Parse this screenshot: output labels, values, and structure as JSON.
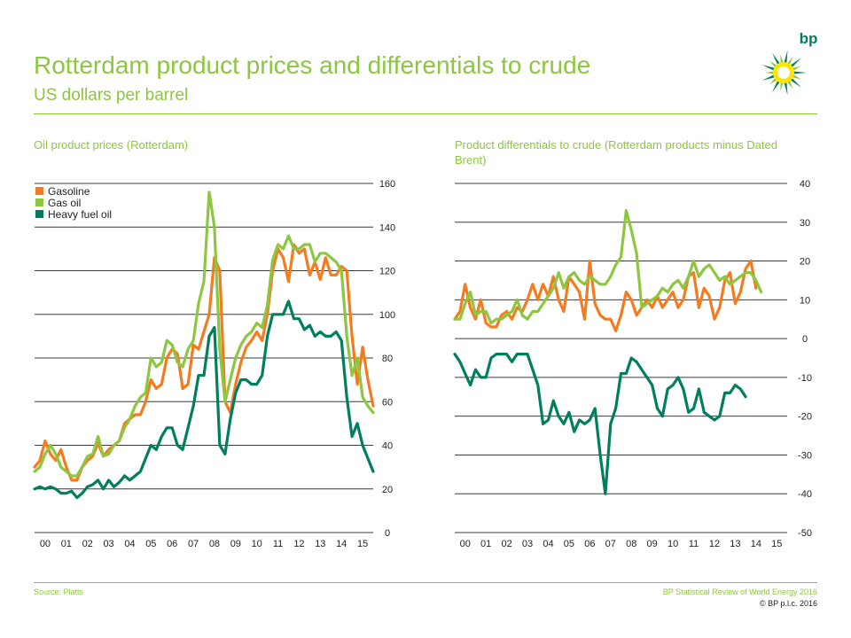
{
  "header": {
    "title": "Rotterdam product prices and differentials to crude",
    "subtitle": "US dollars per barrel",
    "logo_text": "bp"
  },
  "footer": {
    "source": "Source: Platts",
    "publication": "BP Statistical Review of World Energy 2016",
    "copyright": "© BP p.l.c. 2016"
  },
  "colors": {
    "brand": "#8dc63f",
    "gasoline": "#f47b20",
    "gas_oil": "#8dc63f",
    "heavy_fuel_oil": "#007f5f",
    "grid": "#3a3a3a"
  },
  "chart_data": [
    {
      "type": "line",
      "title": "Oil product prices (Rotterdam)",
      "x_tick_labels": [
        "00",
        "01",
        "02",
        "03",
        "04",
        "05",
        "06",
        "07",
        "08",
        "09",
        "10",
        "11",
        "12",
        "13",
        "14",
        "15"
      ],
      "x_start": 2000,
      "points_per_year": 4,
      "ylim": [
        0,
        160
      ],
      "yticks": [
        0,
        20,
        40,
        60,
        80,
        100,
        120,
        140,
        160
      ],
      "grid": true,
      "legend": "top-left",
      "series": [
        {
          "name": "Gasoline",
          "color": "#f47b20",
          "values": [
            30,
            33,
            42,
            36,
            33,
            38,
            30,
            24,
            24,
            30,
            33,
            35,
            41,
            35,
            38,
            40,
            42,
            50,
            52,
            54,
            54,
            60,
            70,
            66,
            68,
            80,
            84,
            82,
            66,
            68,
            86,
            84,
            92,
            100,
            126,
            120,
            60,
            55,
            68,
            78,
            85,
            88,
            92,
            88,
            100,
            120,
            130,
            126,
            115,
            132,
            128,
            130,
            118,
            124,
            116,
            126,
            118,
            118,
            122,
            120,
            90,
            68,
            85,
            70,
            58
          ]
        },
        {
          "name": "Gas oil",
          "color": "#8dc63f",
          "values": [
            28,
            30,
            36,
            40,
            36,
            30,
            28,
            26,
            26,
            30,
            35,
            36,
            44,
            35,
            36,
            40,
            42,
            48,
            52,
            58,
            62,
            64,
            80,
            76,
            78,
            88,
            86,
            78,
            76,
            84,
            88,
            105,
            115,
            156,
            140,
            84,
            60,
            70,
            80,
            86,
            90,
            92,
            96,
            94,
            104,
            125,
            132,
            130,
            136,
            130,
            130,
            132,
            132,
            124,
            128,
            128,
            126,
            124,
            120,
            90,
            72,
            80,
            62,
            58,
            55
          ]
        },
        {
          "name": "Heavy fuel oil",
          "color": "#007f5f",
          "values": [
            20,
            21,
            20,
            21,
            20,
            18,
            18,
            19,
            16,
            18,
            21,
            22,
            24,
            20,
            24,
            21,
            23,
            26,
            24,
            26,
            28,
            34,
            40,
            38,
            44,
            48,
            48,
            40,
            38,
            48,
            58,
            72,
            72,
            90,
            94,
            40,
            36,
            52,
            64,
            70,
            70,
            68,
            68,
            72,
            90,
            100,
            100,
            100,
            106,
            98,
            98,
            93,
            95,
            90,
            92,
            90,
            90,
            92,
            88,
            62,
            44,
            50,
            40,
            34,
            28
          ]
        }
      ]
    },
    {
      "type": "line",
      "title": "Product differentials to crude (Rotterdam products minus Dated Brent)",
      "x_tick_labels": [
        "00",
        "01",
        "02",
        "03",
        "04",
        "05",
        "06",
        "07",
        "08",
        "09",
        "10",
        "11",
        "12",
        "13",
        "14",
        "15"
      ],
      "x_start": 2000,
      "points_per_year": 4,
      "ylim": [
        -50,
        40
      ],
      "yticks": [
        -50,
        -40,
        -30,
        -20,
        -10,
        0,
        10,
        20,
        30,
        40
      ],
      "grid": true,
      "series": [
        {
          "color": "#f47b20",
          "values": [
            5,
            7,
            14,
            8,
            5,
            10,
            4,
            3,
            3,
            6,
            7,
            5,
            8,
            7,
            10,
            14,
            10,
            14,
            11,
            16,
            10,
            7,
            16,
            14,
            12,
            5,
            20,
            9,
            6,
            5,
            5,
            2,
            6,
            12,
            10,
            6,
            8,
            10,
            8,
            11,
            8,
            10,
            12,
            8,
            10,
            16,
            17,
            8,
            13,
            11,
            5,
            8,
            15,
            17,
            9,
            12,
            18,
            20,
            13
          ]
        },
        {
          "color": "#8dc63f",
          "values": [
            5,
            5,
            9,
            12,
            6,
            7,
            7,
            4,
            5,
            5,
            6,
            7,
            10,
            6,
            5,
            7,
            7,
            9,
            11,
            13,
            17,
            13,
            16,
            17,
            15,
            14,
            16,
            15,
            14,
            14,
            16,
            19,
            21,
            33,
            28,
            22,
            8,
            9,
            10,
            11,
            13,
            12,
            14,
            15,
            13,
            16,
            20,
            16,
            18,
            19,
            17,
            15,
            16,
            14,
            15,
            16,
            17,
            17,
            15,
            12
          ]
        },
        {
          "color": "#007f5f",
          "values": [
            -4,
            -6,
            -9,
            -12,
            -8,
            -10,
            -10,
            -5,
            -4,
            -4,
            -4,
            -6,
            -4,
            -4,
            -4,
            -8,
            -12,
            -22,
            -21,
            -16,
            -20,
            -22,
            -19,
            -24,
            -21,
            -22,
            -21,
            -18,
            -30,
            -40,
            -22,
            -18,
            -9,
            -9,
            -5,
            -6,
            -8,
            -10,
            -12,
            -18,
            -20,
            -13,
            -12,
            -10,
            -13,
            -19,
            -18,
            -13,
            -19,
            -20,
            -21,
            -20,
            -14,
            -14,
            -12,
            -13,
            -15
          ]
        }
      ]
    }
  ]
}
